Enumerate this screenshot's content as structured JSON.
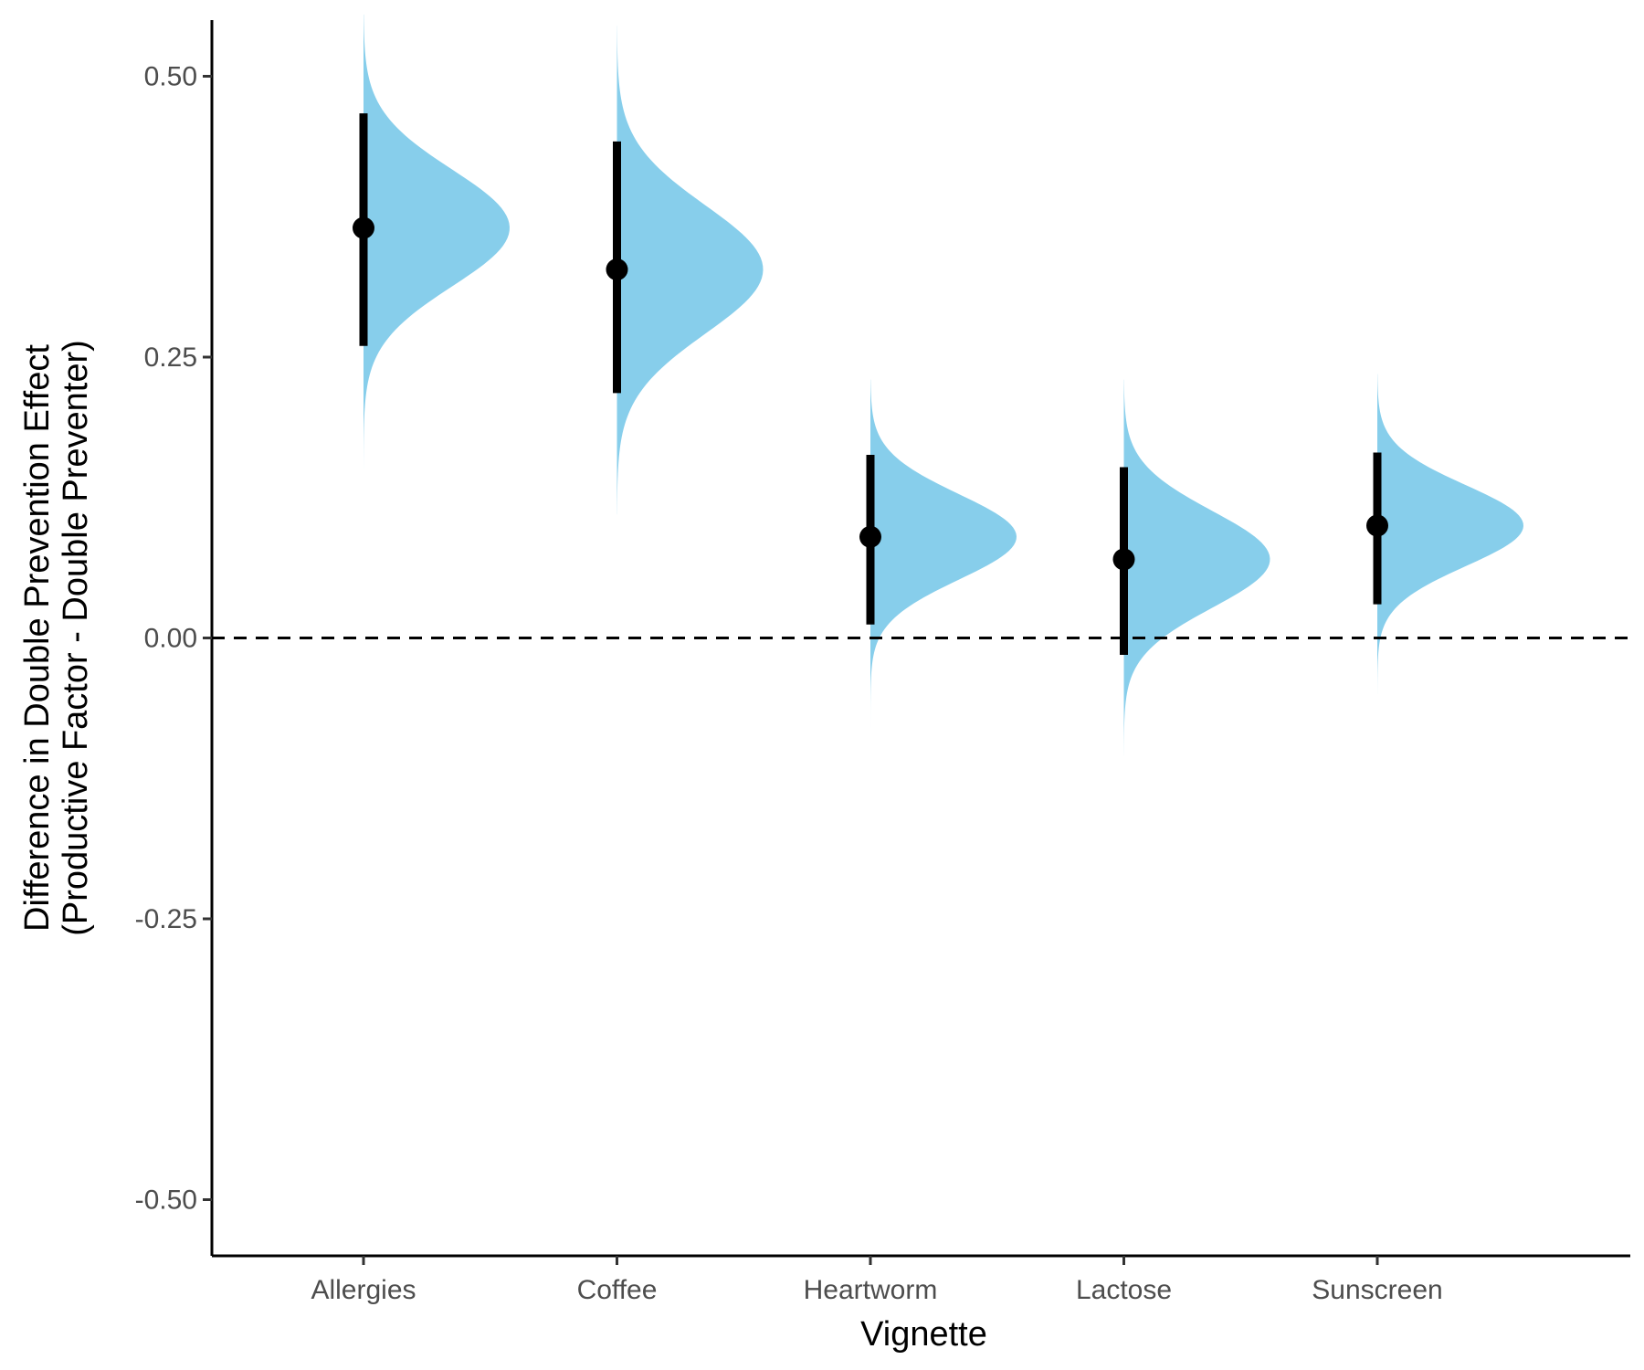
{
  "chart_data": {
    "type": "halfeye",
    "xlabel": "Vignette",
    "ylabel_lines": [
      "Difference in Double Prevention Effect",
      "(Productive Factor - Double Preventer)"
    ],
    "ylim": [
      -0.55,
      0.55
    ],
    "yticks": [
      -0.5,
      -0.25,
      0.0,
      0.25,
      0.5
    ],
    "ytick_labels": [
      "-0.50",
      "-0.25",
      "0.00",
      "0.25",
      "0.50"
    ],
    "categories": [
      "Allergies",
      "Coffee",
      "Heartworm",
      "Lactose",
      "Sunscreen"
    ],
    "reference_line": {
      "y": 0.0,
      "style": "dashed"
    },
    "series": [
      {
        "category": "Allergies",
        "point": 0.365,
        "interval": [
          0.26,
          0.467
        ],
        "density_range": [
          0.15,
          0.555
        ],
        "density_sd": 0.052
      },
      {
        "category": "Coffee",
        "point": 0.328,
        "interval": [
          0.218,
          0.442
        ],
        "density_range": [
          0.11,
          0.545
        ],
        "density_sd": 0.057
      },
      {
        "category": "Heartworm",
        "point": 0.09,
        "interval": [
          0.012,
          0.163
        ],
        "density_range": [
          -0.08,
          0.23
        ],
        "density_sd": 0.038
      },
      {
        "category": "Lactose",
        "point": 0.07,
        "interval": [
          -0.015,
          0.152
        ],
        "density_range": [
          -0.105,
          0.23
        ],
        "density_sd": 0.043
      },
      {
        "category": "Sunscreen",
        "point": 0.1,
        "interval": [
          0.03,
          0.165
        ],
        "density_range": [
          -0.05,
          0.235
        ],
        "density_sd": 0.036
      }
    ],
    "colors": {
      "density": "#87ceeb",
      "interval": "#000000",
      "axis": "#000000"
    },
    "grid": false,
    "legend": "none"
  }
}
